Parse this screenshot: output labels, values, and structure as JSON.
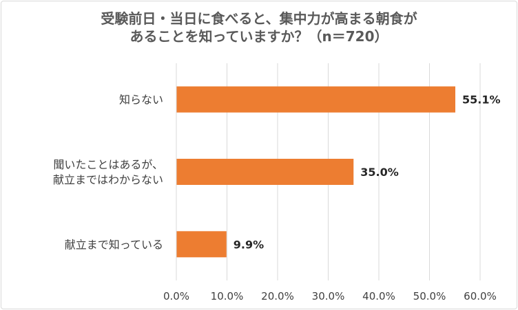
{
  "chart_data": {
    "type": "bar",
    "orientation": "horizontal",
    "title_lines": [
      "受験前日・当日に食べると、集中力が高まる朝食が",
      "あることを知っていますか？（n＝720）"
    ],
    "categories": [
      [
        "知らない"
      ],
      [
        "聞いたことはあるが、",
        "献立まではわからない"
      ],
      [
        "献立まで知っている"
      ]
    ],
    "values": [
      55.1,
      35.0,
      9.9
    ],
    "data_labels": [
      "55.1%",
      "35.0%",
      "9.9%"
    ],
    "xlim": [
      0,
      60
    ],
    "xticks": [
      0,
      10,
      20,
      30,
      40,
      50,
      60
    ],
    "xtick_labels": [
      "0.0%",
      "10.0%",
      "20.0%",
      "30.0%",
      "40.0%",
      "50.0%",
      "60.0%"
    ],
    "bar_color": "#ed7d31",
    "grid": true,
    "legend": "none"
  }
}
